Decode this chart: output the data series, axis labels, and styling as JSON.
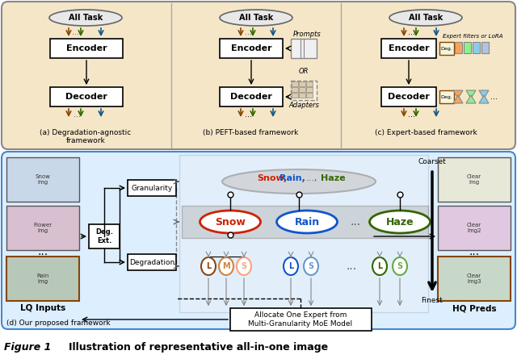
{
  "fig_width": 6.4,
  "fig_height": 4.45,
  "dpi": 100,
  "bg_color": "#ffffff",
  "top_panel_bg": "#f5e6c8",
  "top_panel_border": "#888888",
  "bottom_panel_bg": "#ddeeff",
  "bottom_panel_border": "#4488cc",
  "caption_text": "Figure 1    Illustration of representative all-in-one image",
  "section_a_label": "(a) Degradation-agnostic\nframework",
  "section_b_label": "(b) PEFT-based framework",
  "section_c_label": "(c) Expert-based framework",
  "section_d_label": "(d) Our proposed framework",
  "snow_color": "#cc2200",
  "rain_color": "#1155cc",
  "haze_color": "#336600",
  "l_color_snow": "#8B4513",
  "m_color_snow": "#cd853f",
  "s_color_snow": "#ffa07a",
  "l_color_rain": "#1155cc",
  "s_color_rain": "#6699cc",
  "l_color_haze": "#336600",
  "s_color_haze": "#66aa44",
  "coarset_label": "Coarset",
  "finest_label": "Finest",
  "granularity_label": "Granularity",
  "degradation_label": "Degradation",
  "deg_ext_label": "Deg.\nExt.",
  "lq_inputs_label": "LQ Inputs",
  "hq_preds_label": "HQ Preds",
  "allocate_text": "Allocate One Expert from\nMulti-Granularity MoE Model",
  "snow_rain_haze_text": "Snow, Rain, ..., Haze",
  "encoder_label": "Encoder",
  "decoder_label": "Decoder",
  "all_task_label": "All Task",
  "prompts_label": "Prompts",
  "or_label": "OR",
  "adapters_label": "Adapters"
}
